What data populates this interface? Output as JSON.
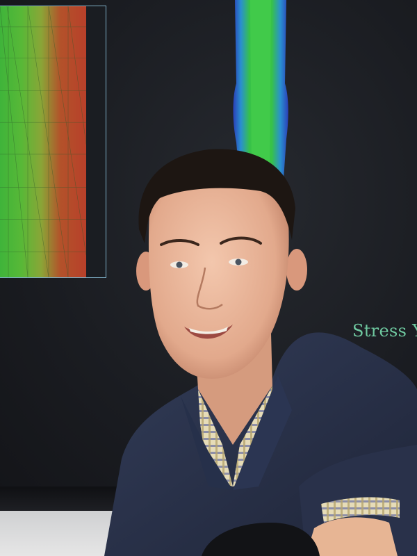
{
  "screen": {
    "label_text": "Stress Y",
    "label_color": "#6fc9a0"
  },
  "photo": {
    "subject": "portrait-photo",
    "colors": {
      "sweater": "#27304a",
      "shirt_check": "#d9cfa9",
      "skin": "#e7b89e",
      "hair": "#1c1512"
    }
  }
}
